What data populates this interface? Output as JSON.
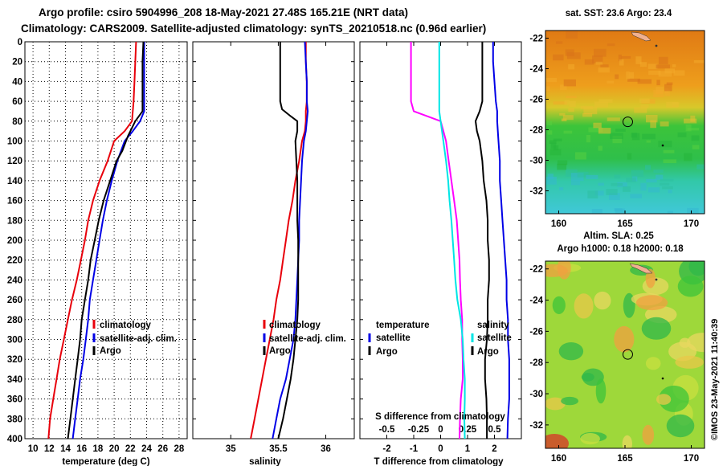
{
  "header": {
    "line1": "Argo profile: csiro 5904996_208 18-May-2021 27.48S 165.21E (NRT data)",
    "line2": "Climatology: CARS2009. Satellite-adjusted climatology: synTS_20210518.nc (0.96d earlier)"
  },
  "footer": {
    "stamp": "©IMOS 23-May-2021 11:40:39"
  },
  "chart_data": [
    {
      "type": "line",
      "name": "temperature-profile",
      "xlabel": "temperature (deg C)",
      "ylabel": "",
      "xlim": [
        9,
        29
      ],
      "ylim": [
        400,
        0
      ],
      "xticks": [
        10,
        12,
        14,
        16,
        18,
        20,
        22,
        24,
        26,
        28
      ],
      "yticks": [
        0,
        20,
        40,
        60,
        80,
        100,
        120,
        140,
        160,
        180,
        200,
        220,
        240,
        260,
        280,
        300,
        320,
        340,
        360,
        380,
        400
      ],
      "grid": true,
      "legend": [
        "climatology",
        "satellite-adj. clim.",
        "Argo"
      ],
      "legend_placement": "lower-right",
      "series": [
        {
          "name": "climatology",
          "color": "#e8000b",
          "points": [
            [
              22.7,
              0
            ],
            [
              22.6,
              20
            ],
            [
              22.5,
              40
            ],
            [
              22.4,
              60
            ],
            [
              22.2,
              80
            ],
            [
              21.3,
              90
            ],
            [
              20.0,
              100
            ],
            [
              19.2,
              120
            ],
            [
              18.2,
              140
            ],
            [
              17.4,
              160
            ],
            [
              16.8,
              180
            ],
            [
              16.4,
              200
            ],
            [
              15.9,
              220
            ],
            [
              15.4,
              240
            ],
            [
              14.8,
              260
            ],
            [
              14.3,
              280
            ],
            [
              13.8,
              300
            ],
            [
              13.3,
              320
            ],
            [
              12.9,
              340
            ],
            [
              12.5,
              360
            ],
            [
              12.1,
              380
            ],
            [
              11.9,
              400
            ]
          ]
        },
        {
          "name": "satellite-adj. clim.",
          "color": "#0000e6",
          "points": [
            [
              23.7,
              0
            ],
            [
              23.7,
              20
            ],
            [
              23.7,
              40
            ],
            [
              23.7,
              60
            ],
            [
              23.7,
              70
            ],
            [
              23.2,
              80
            ],
            [
              22.3,
              90
            ],
            [
              21.3,
              100
            ],
            [
              20.4,
              120
            ],
            [
              19.7,
              140
            ],
            [
              19.1,
              160
            ],
            [
              18.6,
              180
            ],
            [
              18.2,
              200
            ],
            [
              17.8,
              220
            ],
            [
              17.4,
              240
            ],
            [
              17.0,
              260
            ],
            [
              16.8,
              280
            ],
            [
              16.5,
              300
            ],
            [
              16.2,
              320
            ],
            [
              15.8,
              340
            ],
            [
              15.5,
              360
            ],
            [
              15.2,
              380
            ],
            [
              14.9,
              400
            ]
          ]
        },
        {
          "name": "Argo",
          "color": "#000000",
          "points": [
            [
              23.6,
              0
            ],
            [
              23.5,
              20
            ],
            [
              23.5,
              40
            ],
            [
              23.5,
              60
            ],
            [
              23.5,
              70
            ],
            [
              22.6,
              80
            ],
            [
              21.7,
              95
            ],
            [
              21.0,
              110
            ],
            [
              20.3,
              120
            ],
            [
              19.5,
              140
            ],
            [
              18.7,
              160
            ],
            [
              18.1,
              180
            ],
            [
              17.6,
              200
            ],
            [
              17.1,
              220
            ],
            [
              16.8,
              240
            ],
            [
              16.4,
              260
            ],
            [
              16.0,
              280
            ],
            [
              15.8,
              300
            ],
            [
              15.5,
              320
            ],
            [
              15.2,
              340
            ],
            [
              14.9,
              360
            ],
            [
              14.6,
              380
            ],
            [
              14.3,
              400
            ]
          ]
        }
      ]
    },
    {
      "type": "line",
      "name": "salinity-profile",
      "xlabel": "salinity",
      "xlim": [
        34.6,
        36.3
      ],
      "ylim": [
        400,
        0
      ],
      "xticks": [
        35,
        35.5,
        36
      ],
      "xtick_labels": [
        "35",
        "35.5",
        "36"
      ],
      "legend": [
        "climatology",
        "satellite-adj. clim.",
        "Argo"
      ],
      "legend_placement": "lower-right",
      "series": [
        {
          "name": "climatology",
          "color": "#e8000b",
          "points": [
            [
              35.79,
              0
            ],
            [
              35.79,
              20
            ],
            [
              35.8,
              40
            ],
            [
              35.8,
              60
            ],
            [
              35.79,
              70
            ],
            [
              35.79,
              80
            ],
            [
              35.78,
              90
            ],
            [
              35.75,
              100
            ],
            [
              35.72,
              120
            ],
            [
              35.68,
              140
            ],
            [
              35.65,
              160
            ],
            [
              35.61,
              180
            ],
            [
              35.58,
              200
            ],
            [
              35.55,
              220
            ],
            [
              35.52,
              240
            ],
            [
              35.48,
              260
            ],
            [
              35.45,
              280
            ],
            [
              35.41,
              300
            ],
            [
              35.37,
              320
            ],
            [
              35.33,
              340
            ],
            [
              35.29,
              360
            ],
            [
              35.25,
              380
            ],
            [
              35.21,
              400
            ]
          ]
        },
        {
          "name": "satellite-adj. clim.",
          "color": "#0000e6",
          "points": [
            [
              35.78,
              0
            ],
            [
              35.79,
              20
            ],
            [
              35.8,
              40
            ],
            [
              35.8,
              60
            ],
            [
              35.81,
              70
            ],
            [
              35.8,
              80
            ],
            [
              35.79,
              90
            ],
            [
              35.77,
              100
            ],
            [
              35.75,
              120
            ],
            [
              35.74,
              140
            ],
            [
              35.73,
              160
            ],
            [
              35.72,
              180
            ],
            [
              35.72,
              200
            ],
            [
              35.71,
              220
            ],
            [
              35.7,
              240
            ],
            [
              35.69,
              260
            ],
            [
              35.68,
              280
            ],
            [
              35.66,
              300
            ],
            [
              35.62,
              320
            ],
            [
              35.58,
              340
            ],
            [
              35.52,
              360
            ],
            [
              35.48,
              380
            ],
            [
              35.44,
              400
            ]
          ]
        },
        {
          "name": "Argo",
          "color": "#000000",
          "points": [
            [
              35.52,
              0
            ],
            [
              35.52,
              20
            ],
            [
              35.52,
              40
            ],
            [
              35.52,
              60
            ],
            [
              35.54,
              68
            ],
            [
              35.63,
              75
            ],
            [
              35.7,
              80
            ],
            [
              35.7,
              90
            ],
            [
              35.68,
              100
            ],
            [
              35.69,
              120
            ],
            [
              35.7,
              140
            ],
            [
              35.7,
              160
            ],
            [
              35.7,
              180
            ],
            [
              35.71,
              200
            ],
            [
              35.71,
              220
            ],
            [
              35.71,
              240
            ],
            [
              35.71,
              260
            ],
            [
              35.7,
              280
            ],
            [
              35.68,
              300
            ],
            [
              35.66,
              320
            ],
            [
              35.63,
              340
            ],
            [
              35.59,
              360
            ],
            [
              35.55,
              380
            ],
            [
              35.5,
              400
            ]
          ]
        }
      ]
    },
    {
      "type": "line",
      "name": "difference-profile",
      "xlabel": "T difference from climatology",
      "xlim": [
        -3,
        3
      ],
      "ylim": [
        400,
        0
      ],
      "xticks": [
        -2,
        -1,
        0,
        1,
        2
      ],
      "xtick_labels": [
        "-2",
        "-1",
        "0",
        "1",
        "2"
      ],
      "top_tick_labels": [
        "-0.5",
        "-0.25",
        "0",
        "0.25",
        "0.5"
      ],
      "top_axis_label": "S difference from climatology",
      "legend_temperature_title": "temperature",
      "legend_salinity_title": "salinity",
      "legend": [
        "satellite",
        "Argo"
      ],
      "series": [
        {
          "name": "temperature satellite",
          "color": "#ff00ff",
          "points": [
            [
              -1.1,
              0
            ],
            [
              -1.1,
              20
            ],
            [
              -1.1,
              40
            ],
            [
              -1.1,
              60
            ],
            [
              -1.0,
              70
            ],
            [
              0.0,
              80
            ],
            [
              0.1,
              90
            ],
            [
              0.2,
              100
            ],
            [
              0.3,
              120
            ],
            [
              0.4,
              140
            ],
            [
              0.5,
              160
            ],
            [
              0.6,
              180
            ],
            [
              0.65,
              200
            ],
            [
              0.7,
              220
            ],
            [
              0.72,
              240
            ],
            [
              0.75,
              260
            ],
            [
              0.8,
              280
            ],
            [
              0.8,
              300
            ],
            [
              0.82,
              320
            ],
            [
              0.82,
              340
            ],
            [
              0.75,
              360
            ],
            [
              0.72,
              380
            ],
            [
              0.7,
              400
            ]
          ]
        },
        {
          "name": "temperature Argo",
          "color": "#00e5e5",
          "points": [
            [
              -0.05,
              0
            ],
            [
              -0.05,
              20
            ],
            [
              -0.05,
              40
            ],
            [
              -0.05,
              60
            ],
            [
              -0.05,
              70
            ],
            [
              0.0,
              80
            ],
            [
              0.05,
              90
            ],
            [
              0.1,
              100
            ],
            [
              0.2,
              120
            ],
            [
              0.28,
              140
            ],
            [
              0.33,
              160
            ],
            [
              0.4,
              180
            ],
            [
              0.45,
              200
            ],
            [
              0.5,
              220
            ],
            [
              0.55,
              240
            ],
            [
              0.62,
              260
            ],
            [
              0.75,
              280
            ],
            [
              0.82,
              300
            ],
            [
              0.85,
              320
            ],
            [
              0.9,
              340
            ],
            [
              0.9,
              360
            ],
            [
              0.88,
              380
            ],
            [
              0.9,
              400
            ]
          ]
        },
        {
          "name": "salinity satellite",
          "color": "#0000e6",
          "points": [
            [
              1.95,
              0
            ],
            [
              1.95,
              20
            ],
            [
              2.0,
              40
            ],
            [
              2.05,
              60
            ],
            [
              2.1,
              70
            ],
            [
              2.1,
              80
            ],
            [
              2.15,
              100
            ],
            [
              2.2,
              120
            ],
            [
              2.2,
              140
            ],
            [
              2.25,
              160
            ],
            [
              2.3,
              180
            ],
            [
              2.35,
              200
            ],
            [
              2.4,
              220
            ],
            [
              2.45,
              240
            ],
            [
              2.45,
              260
            ],
            [
              2.5,
              280
            ],
            [
              2.5,
              300
            ],
            [
              2.55,
              320
            ],
            [
              2.55,
              340
            ],
            [
              2.55,
              360
            ],
            [
              2.5,
              380
            ],
            [
              2.48,
              400
            ]
          ]
        },
        {
          "name": "salinity Argo",
          "color": "#000000",
          "points": [
            [
              1.55,
              0
            ],
            [
              1.55,
              20
            ],
            [
              1.55,
              40
            ],
            [
              1.55,
              60
            ],
            [
              1.45,
              70
            ],
            [
              1.3,
              80
            ],
            [
              1.35,
              90
            ],
            [
              1.45,
              100
            ],
            [
              1.55,
              120
            ],
            [
              1.6,
              140
            ],
            [
              1.7,
              160
            ],
            [
              1.75,
              180
            ],
            [
              1.75,
              200
            ],
            [
              1.8,
              220
            ],
            [
              1.8,
              240
            ],
            [
              1.75,
              260
            ],
            [
              1.75,
              280
            ],
            [
              1.72,
              300
            ],
            [
              1.65,
              320
            ],
            [
              1.65,
              340
            ],
            [
              1.7,
              360
            ],
            [
              1.72,
              380
            ],
            [
              1.72,
              400
            ]
          ]
        }
      ]
    },
    {
      "type": "heatmap",
      "name": "sst-map",
      "title": "sat. SST: 23.6 Argo: 23.4",
      "xlim": [
        159,
        171
      ],
      "ylim": [
        -33.5,
        -21.5
      ],
      "xticks": [
        160,
        165,
        170
      ],
      "yticks": [
        -22,
        -24,
        -26,
        -28,
        -30,
        -32
      ],
      "marker": {
        "lon": 165.21,
        "lat": -27.48
      }
    },
    {
      "type": "heatmap",
      "name": "sla-map",
      "title_line1": "Altim. SLA: 0.25",
      "title_line2": "Argo h1000: 0.18 h2000: 0.18",
      "xlim": [
        159,
        171
      ],
      "ylim": [
        -33.5,
        -21.5
      ],
      "xticks": [
        160,
        165,
        170
      ],
      "yticks": [
        -22,
        -24,
        -26,
        -28,
        -30,
        -32
      ],
      "marker": {
        "lon": 165.21,
        "lat": -27.48
      }
    }
  ]
}
